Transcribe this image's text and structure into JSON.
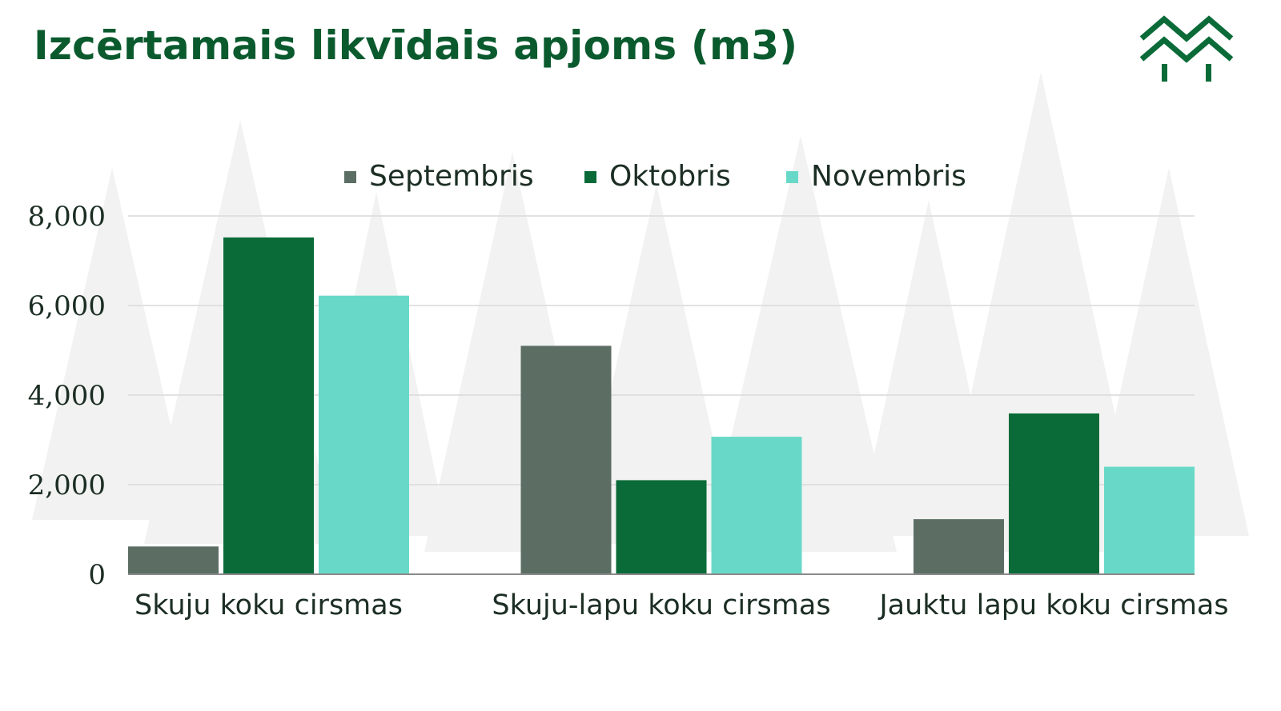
{
  "header": {
    "title": "Izcērtamais likvīdais apjoms (m3)"
  },
  "logo": {
    "icon": "forest-mountain-logo-icon",
    "color": "#0a6b38"
  },
  "chart_data": {
    "type": "bar",
    "title": "Izcērtamais likvīdais apjoms (m3)",
    "categories": [
      "Skuju koku cirsmas",
      "Skuju-lapu koku cirsmas",
      "Jauktu lapu koku cirsmas"
    ],
    "series": [
      {
        "name": "Septembris",
        "values": [
          620,
          5100,
          1230
        ],
        "color": "#5c6e64"
      },
      {
        "name": "Oktobris",
        "values": [
          7520,
          2100,
          3590
        ],
        "color": "#0a6b38"
      },
      {
        "name": "Novembris",
        "values": [
          6220,
          3070,
          2400
        ],
        "color": "#68d9c8"
      }
    ],
    "ylim": [
      0,
      8000
    ],
    "yticks": [
      0,
      2000,
      4000,
      6000,
      8000
    ],
    "ytick_labels": [
      "0",
      "2,000",
      "4,000",
      "6,000",
      "8,000"
    ],
    "xlabel": "",
    "ylabel": "",
    "grid": true,
    "legend_position": "top-center"
  }
}
